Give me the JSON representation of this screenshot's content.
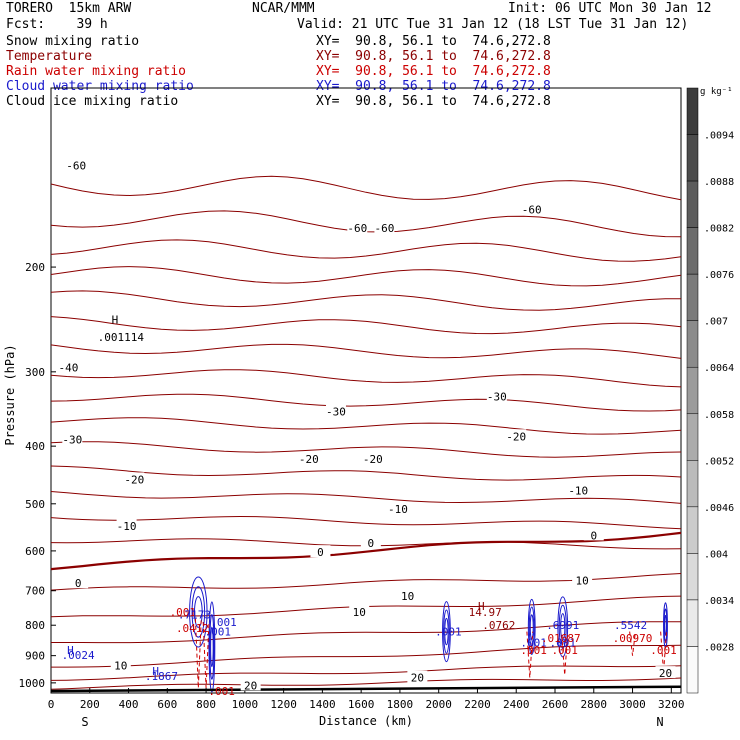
{
  "header": {
    "model": "TORERO  15km ARW",
    "org": "NCAR/MMM",
    "init": "Init: 06 UTC Mon 30 Jan 12",
    "fcst": "Fcst:    39 h",
    "valid": "Valid: 21 UTC Tue 31 Jan 12 (18 LST Tue 31 Jan 12)"
  },
  "legend": [
    {
      "name": "Snow mixing ratio",
      "xy": "XY=  90.8, 56.1 to  74.6,272.8",
      "color": "#000000"
    },
    {
      "name": "Temperature",
      "xy": "XY=  90.8, 56.1 to  74.6,272.8",
      "color": "#8b0000"
    },
    {
      "name": "Rain water mixing ratio",
      "xy": "XY=  90.8, 56.1 to  74.6,272.8",
      "color": "#cc0000"
    },
    {
      "name": "Cloud water mixing ratio",
      "xy": "XY=  90.8, 56.1 to  74.6,272.8",
      "color": "#1a1acc"
    },
    {
      "name": "Cloud ice mixing ratio",
      "xy": "XY=  90.8, 56.1 to  74.6,272.8",
      "color": "#000000"
    }
  ],
  "chart_data": {
    "type": "line",
    "subtype": "vertical cross-section contour",
    "xlabel": "Distance (km)",
    "ylabel": "Pressure (hPa)",
    "xlim": [
      0,
      3250
    ],
    "ylim": [
      1040,
      100
    ],
    "y_scale": "log",
    "x_ticks": [
      0,
      200,
      400,
      600,
      800,
      1000,
      1200,
      1400,
      1600,
      1800,
      2000,
      2200,
      2400,
      2600,
      2800,
      3000,
      3200
    ],
    "y_ticks": [
      200,
      300,
      400,
      500,
      600,
      700,
      800,
      900,
      1000
    ],
    "endpoints": {
      "left": "S",
      "right": "N"
    },
    "colorbar": {
      "unit": "g kg⁻¹",
      "ticks": [
        ".0094",
        ".0088",
        ".0082",
        ".0076",
        ".007",
        ".0064",
        ".0058",
        ".0052",
        ".0046",
        ".004",
        ".0034",
        ".0028"
      ]
    },
    "temperature_contours_C": [
      -60,
      -50,
      -40,
      -30,
      -20,
      -10,
      0,
      10,
      20
    ],
    "temperature_labels": [
      {
        "text": "-60",
        "x": 130,
        "y": 135
      },
      {
        "text": "-60",
        "x": 1580,
        "y": 172
      },
      {
        "text": "-60",
        "x": 1720,
        "y": 172
      },
      {
        "text": "-60",
        "x": 2480,
        "y": 160
      },
      {
        "text": "-40",
        "x": 90,
        "y": 295
      },
      {
        "text": "-30",
        "x": 2300,
        "y": 330
      },
      {
        "text": "-30",
        "x": 1470,
        "y": 350
      },
      {
        "text": "-30",
        "x": 110,
        "y": 390
      },
      {
        "text": "-20",
        "x": 2400,
        "y": 385
      },
      {
        "text": "-20",
        "x": 1330,
        "y": 420
      },
      {
        "text": "-20",
        "x": 1660,
        "y": 420
      },
      {
        "text": "-20",
        "x": 430,
        "y": 455
      },
      {
        "text": "-10",
        "x": 2720,
        "y": 475
      },
      {
        "text": "-10",
        "x": 1790,
        "y": 510
      },
      {
        "text": "-10",
        "x": 390,
        "y": 545
      },
      {
        "text": "0",
        "x": 2800,
        "y": 565
      },
      {
        "text": "0",
        "x": 1650,
        "y": 582
      },
      {
        "text": "0",
        "x": 1390,
        "y": 603
      },
      {
        "text": "0",
        "x": 140,
        "y": 680
      },
      {
        "text": "10",
        "x": 2740,
        "y": 673
      },
      {
        "text": "10",
        "x": 1840,
        "y": 715
      },
      {
        "text": "10",
        "x": 1590,
        "y": 760
      },
      {
        "text": "10",
        "x": 360,
        "y": 935
      },
      {
        "text": "20",
        "x": 3170,
        "y": 963
      },
      {
        "text": "20",
        "x": 1890,
        "y": 980
      },
      {
        "text": "20",
        "x": 1030,
        "y": 1010
      }
    ],
    "annotations": [
      {
        "text": "H",
        "x": 330,
        "y": 245,
        "color": "#000000"
      },
      {
        "text": ".001114",
        "x": 360,
        "y": 262,
        "color": "#000000"
      },
      {
        "text": "H",
        "x": 2220,
        "y": 742,
        "color": "#8b0000"
      },
      {
        "text": "14.97",
        "x": 2240,
        "y": 760,
        "color": "#8b0000"
      },
      {
        "text": "H",
        "x": 100,
        "y": 880,
        "color": "#1a1acc"
      },
      {
        "text": ".0024",
        "x": 140,
        "y": 898,
        "color": "#1a1acc"
      },
      {
        "text": "H",
        "x": 540,
        "y": 955,
        "color": "#1a1acc"
      },
      {
        "text": ".1867",
        "x": 570,
        "y": 973,
        "color": "#1a1acc"
      },
      {
        "text": ".001",
        "x": 680,
        "y": 760,
        "color": "#cc0000"
      },
      {
        "text": ".7173",
        "x": 740,
        "y": 768,
        "color": "#1a1acc"
      },
      {
        "text": ".001",
        "x": 890,
        "y": 790,
        "color": "#1a1acc"
      },
      {
        "text": ".0412",
        "x": 730,
        "y": 808,
        "color": "#cc0000"
      },
      {
        "text": ".001",
        "x": 860,
        "y": 820,
        "color": "#1a1acc"
      },
      {
        "text": ".001",
        "x": 2050,
        "y": 820,
        "color": "#1a1acc"
      },
      {
        "text": ".0762",
        "x": 2310,
        "y": 800,
        "color": "#8b0000"
      },
      {
        "text": ".6991",
        "x": 2640,
        "y": 800,
        "color": "#1a1acc"
      },
      {
        "text": ".001",
        "x": 2490,
        "y": 855,
        "color": "#1a1acc"
      },
      {
        "text": ".001",
        "x": 2640,
        "y": 855,
        "color": "#1a1acc"
      },
      {
        "text": ".01687",
        "x": 2630,
        "y": 840,
        "color": "#cc0000"
      },
      {
        "text": ".001",
        "x": 2490,
        "y": 880,
        "color": "#cc0000"
      },
      {
        "text": ".001",
        "x": 2650,
        "y": 880,
        "color": "#cc0000"
      },
      {
        "text": ".5542",
        "x": 2990,
        "y": 800,
        "color": "#1a1acc"
      },
      {
        "text": ".00970",
        "x": 3000,
        "y": 840,
        "color": "#cc0000"
      },
      {
        "text": ".001",
        "x": 3160,
        "y": 880,
        "color": "#cc0000"
      },
      {
        "text": ".001",
        "x": 880,
        "y": 1032,
        "color": "#cc0000"
      }
    ]
  }
}
